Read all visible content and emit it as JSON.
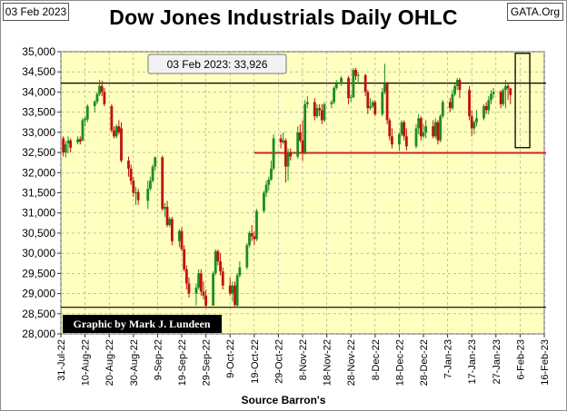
{
  "header": {
    "date_tag": "03 Feb 2023",
    "source_tag": "GATA.Org"
  },
  "chart_data": {
    "type": "ohlc",
    "title": "Dow Jones Industrials Daily OHLC",
    "xlabel": "Source Barron's",
    "ylabel": "",
    "ylim": [
      28000,
      35000
    ],
    "y_ticks": [
      28000,
      28500,
      29000,
      29500,
      30000,
      30500,
      31000,
      31500,
      32000,
      32500,
      33000,
      33500,
      34000,
      34500,
      35000
    ],
    "y_tick_labels": [
      "28,000",
      "28,500",
      "29,000",
      "29,500",
      "30,000",
      "30,500",
      "31,000",
      "31,500",
      "32,000",
      "32,500",
      "33,000",
      "33,500",
      "34,000",
      "34,500",
      "35,000"
    ],
    "x_tick_labels": [
      "31-Jul-22",
      "10-Aug-22",
      "20-Aug-22",
      "30-Aug-22",
      "9-Sep-22",
      "19-Sep-22",
      "29-Sep-22",
      "9-Oct-22",
      "19-Oct-22",
      "29-Oct-22",
      "8-Nov-22",
      "18-Nov-22",
      "28-Nov-22",
      "8-Dec-22",
      "18-Dec-22",
      "28-Dec-22",
      "7-Jan-23",
      "17-Jan-23",
      "27-Jan-23",
      "6-Feb-23",
      "16-Feb-23"
    ],
    "x_range_days": [
      0,
      200
    ],
    "last_close_label": "03 Feb 2023: 33,926",
    "credit": "Graphic by Mark J. Lundeen",
    "colors": {
      "up": "#1e8c1e",
      "down": "#c01010",
      "plot_bg": "#ffffc0",
      "ref_red": "#c82828"
    },
    "reference_lines": [
      {
        "name": "upper-black",
        "y": 34220,
        "color": "#000000"
      },
      {
        "name": "lower-black",
        "y": 28660,
        "color": "#000000"
      },
      {
        "name": "red-support",
        "y": 32490,
        "from_day": 80,
        "color": "#c82828"
      }
    ],
    "highlight_box": {
      "day_start": 188,
      "day_end": 194,
      "y_low": 32620,
      "y_high": 34960
    },
    "bars": [
      {
        "d": 1,
        "o": 32850,
        "h": 32900,
        "l": 32400,
        "c": 32500
      },
      {
        "d": 2,
        "o": 32500,
        "h": 32780,
        "l": 32380,
        "c": 32700
      },
      {
        "d": 3,
        "o": 32720,
        "h": 32900,
        "l": 32480,
        "c": 32800
      },
      {
        "d": 4,
        "o": 32800,
        "h": 32850,
        "l": 32500,
        "c": 32620
      },
      {
        "d": 7,
        "o": 32750,
        "h": 32900,
        "l": 32700,
        "c": 32830
      },
      {
        "d": 8,
        "o": 32830,
        "h": 32900,
        "l": 32700,
        "c": 32770
      },
      {
        "d": 9,
        "o": 32800,
        "h": 33350,
        "l": 32780,
        "c": 33300
      },
      {
        "d": 10,
        "o": 33300,
        "h": 33400,
        "l": 33150,
        "c": 33340
      },
      {
        "d": 11,
        "o": 33320,
        "h": 33700,
        "l": 33250,
        "c": 33650
      },
      {
        "d": 14,
        "o": 33650,
        "h": 33800,
        "l": 33500,
        "c": 33760
      },
      {
        "d": 15,
        "o": 33760,
        "h": 34000,
        "l": 33700,
        "c": 33950
      },
      {
        "d": 16,
        "o": 33950,
        "h": 34300,
        "l": 33900,
        "c": 34150
      },
      {
        "d": 17,
        "o": 34150,
        "h": 34280,
        "l": 33900,
        "c": 34000
      },
      {
        "d": 18,
        "o": 34000,
        "h": 34100,
        "l": 33650,
        "c": 33700
      },
      {
        "d": 21,
        "o": 33650,
        "h": 33700,
        "l": 33000,
        "c": 33050
      },
      {
        "d": 22,
        "o": 33050,
        "h": 33150,
        "l": 32850,
        "c": 32900
      },
      {
        "d": 23,
        "o": 32900,
        "h": 33200,
        "l": 32850,
        "c": 33150
      },
      {
        "d": 24,
        "o": 33150,
        "h": 33300,
        "l": 32950,
        "c": 33000
      },
      {
        "d": 25,
        "o": 33100,
        "h": 33250,
        "l": 32250,
        "c": 32300
      },
      {
        "d": 28,
        "o": 32300,
        "h": 32400,
        "l": 31900,
        "c": 32100
      },
      {
        "d": 29,
        "o": 32100,
        "h": 32200,
        "l": 31700,
        "c": 31800
      },
      {
        "d": 30,
        "o": 31800,
        "h": 31900,
        "l": 31400,
        "c": 31500
      },
      {
        "d": 31,
        "o": 31500,
        "h": 31650,
        "l": 31200,
        "c": 31510
      },
      {
        "d": 32,
        "o": 31520,
        "h": 31600,
        "l": 31200,
        "c": 31320
      },
      {
        "d": 36,
        "o": 31300,
        "h": 31800,
        "l": 31100,
        "c": 31600
      },
      {
        "d": 37,
        "o": 31600,
        "h": 31900,
        "l": 31550,
        "c": 31800
      },
      {
        "d": 38,
        "o": 31800,
        "h": 32200,
        "l": 31750,
        "c": 32150
      },
      {
        "d": 39,
        "o": 32150,
        "h": 32400,
        "l": 32050,
        "c": 32380
      },
      {
        "d": 42,
        "o": 32380,
        "h": 32420,
        "l": 31050,
        "c": 31100
      },
      {
        "d": 43,
        "o": 31100,
        "h": 31250,
        "l": 30900,
        "c": 31150
      },
      {
        "d": 44,
        "o": 31150,
        "h": 31300,
        "l": 30650,
        "c": 30700
      },
      {
        "d": 45,
        "o": 30700,
        "h": 30900,
        "l": 30650,
        "c": 30850
      },
      {
        "d": 46,
        "o": 30850,
        "h": 30900,
        "l": 30200,
        "c": 30300
      },
      {
        "d": 49,
        "o": 30300,
        "h": 30600,
        "l": 30150,
        "c": 30550
      },
      {
        "d": 50,
        "o": 30550,
        "h": 30650,
        "l": 30050,
        "c": 30100
      },
      {
        "d": 51,
        "o": 30100,
        "h": 30200,
        "l": 29550,
        "c": 29600
      },
      {
        "d": 52,
        "o": 29600,
        "h": 29700,
        "l": 29100,
        "c": 29250
      },
      {
        "d": 53,
        "o": 29250,
        "h": 29400,
        "l": 28900,
        "c": 29000
      },
      {
        "d": 56,
        "o": 29000,
        "h": 29250,
        "l": 28700,
        "c": 29150
      },
      {
        "d": 57,
        "o": 29150,
        "h": 29600,
        "l": 29100,
        "c": 29500
      },
      {
        "d": 58,
        "o": 29500,
        "h": 29600,
        "l": 28950,
        "c": 29050
      },
      {
        "d": 59,
        "o": 29050,
        "h": 29300,
        "l": 28850,
        "c": 28950
      },
      {
        "d": 60,
        "o": 28950,
        "h": 29100,
        "l": 28650,
        "c": 28700
      },
      {
        "d": 63,
        "o": 28700,
        "h": 29550,
        "l": 28700,
        "c": 29500
      },
      {
        "d": 64,
        "o": 29500,
        "h": 30100,
        "l": 29450,
        "c": 30050
      },
      {
        "d": 65,
        "o": 30050,
        "h": 30100,
        "l": 29700,
        "c": 29800
      },
      {
        "d": 66,
        "o": 29800,
        "h": 30000,
        "l": 29450,
        "c": 29550
      },
      {
        "d": 67,
        "o": 29550,
        "h": 29650,
        "l": 29100,
        "c": 29200
      },
      {
        "d": 70,
        "o": 29200,
        "h": 29400,
        "l": 28950,
        "c": 29000
      },
      {
        "d": 71,
        "o": 29000,
        "h": 29300,
        "l": 28800,
        "c": 29200
      },
      {
        "d": 72,
        "o": 29200,
        "h": 29300,
        "l": 28650,
        "c": 28720
      },
      {
        "d": 73,
        "o": 28700,
        "h": 29500,
        "l": 28650,
        "c": 29450
      },
      {
        "d": 74,
        "o": 29450,
        "h": 29800,
        "l": 29400,
        "c": 29650
      },
      {
        "d": 77,
        "o": 29650,
        "h": 30250,
        "l": 29600,
        "c": 30200
      },
      {
        "d": 78,
        "o": 30200,
        "h": 30550,
        "l": 30150,
        "c": 30500
      },
      {
        "d": 79,
        "o": 30500,
        "h": 30700,
        "l": 30300,
        "c": 30420
      },
      {
        "d": 80,
        "o": 30420,
        "h": 30550,
        "l": 30200,
        "c": 30350
      },
      {
        "d": 81,
        "o": 30350,
        "h": 31100,
        "l": 30300,
        "c": 31050
      },
      {
        "d": 84,
        "o": 31050,
        "h": 31550,
        "l": 31000,
        "c": 31500
      },
      {
        "d": 85,
        "o": 31500,
        "h": 31800,
        "l": 31400,
        "c": 31700
      },
      {
        "d": 86,
        "o": 31700,
        "h": 31900,
        "l": 31550,
        "c": 31830
      },
      {
        "d": 87,
        "o": 31830,
        "h": 32300,
        "l": 31800,
        "c": 32100
      },
      {
        "d": 88,
        "o": 32100,
        "h": 32950,
        "l": 32050,
        "c": 32850
      },
      {
        "d": 91,
        "o": 32850,
        "h": 32950,
        "l": 32600,
        "c": 32750
      },
      {
        "d": 92,
        "o": 32750,
        "h": 33000,
        "l": 32700,
        "c": 32800
      },
      {
        "d": 93,
        "o": 32800,
        "h": 32850,
        "l": 31750,
        "c": 32150
      },
      {
        "d": 94,
        "o": 32150,
        "h": 32600,
        "l": 31800,
        "c": 32500
      },
      {
        "d": 95,
        "o": 32500,
        "h": 32600,
        "l": 32300,
        "c": 32400
      },
      {
        "d": 98,
        "o": 32400,
        "h": 33150,
        "l": 32350,
        "c": 33000
      },
      {
        "d": 99,
        "o": 33000,
        "h": 33200,
        "l": 32750,
        "c": 32800
      },
      {
        "d": 100,
        "o": 32800,
        "h": 33300,
        "l": 32300,
        "c": 32500
      },
      {
        "d": 101,
        "o": 32500,
        "h": 33800,
        "l": 32450,
        "c": 33700
      },
      {
        "d": 102,
        "o": 33700,
        "h": 33900,
        "l": 33600,
        "c": 33750
      },
      {
        "d": 105,
        "o": 33750,
        "h": 33850,
        "l": 33300,
        "c": 33400
      },
      {
        "d": 106,
        "o": 33400,
        "h": 33700,
        "l": 33350,
        "c": 33600
      },
      {
        "d": 107,
        "o": 33600,
        "h": 33700,
        "l": 33400,
        "c": 33550
      },
      {
        "d": 108,
        "o": 33550,
        "h": 33700,
        "l": 33200,
        "c": 33300
      },
      {
        "d": 109,
        "o": 33300,
        "h": 33750,
        "l": 33250,
        "c": 33700
      },
      {
        "d": 112,
        "o": 33700,
        "h": 33800,
        "l": 33600,
        "c": 33750
      },
      {
        "d": 113,
        "o": 33750,
        "h": 34150,
        "l": 33700,
        "c": 34100
      },
      {
        "d": 114,
        "o": 34100,
        "h": 34300,
        "l": 34050,
        "c": 34200
      },
      {
        "d": 116,
        "o": 34200,
        "h": 34400,
        "l": 34150,
        "c": 34350
      },
      {
        "d": 119,
        "o": 34350,
        "h": 34400,
        "l": 33700,
        "c": 33850
      },
      {
        "d": 120,
        "o": 33850,
        "h": 33950,
        "l": 33750,
        "c": 33870
      },
      {
        "d": 121,
        "o": 33870,
        "h": 34600,
        "l": 33850,
        "c": 34550
      },
      {
        "d": 122,
        "o": 34550,
        "h": 34600,
        "l": 34300,
        "c": 34400
      },
      {
        "d": 123,
        "o": 34400,
        "h": 34500,
        "l": 34200,
        "c": 34420
      },
      {
        "d": 126,
        "o": 34420,
        "h": 34450,
        "l": 33900,
        "c": 34000
      },
      {
        "d": 127,
        "o": 34000,
        "h": 34050,
        "l": 33450,
        "c": 33600
      },
      {
        "d": 128,
        "o": 33600,
        "h": 33850,
        "l": 33550,
        "c": 33650
      },
      {
        "d": 129,
        "o": 33650,
        "h": 33800,
        "l": 33600,
        "c": 33750
      },
      {
        "d": 130,
        "o": 33750,
        "h": 33800,
        "l": 33400,
        "c": 33450
      },
      {
        "d": 133,
        "o": 33450,
        "h": 34100,
        "l": 33400,
        "c": 34000
      },
      {
        "d": 134,
        "o": 34000,
        "h": 34700,
        "l": 33950,
        "c": 34200
      },
      {
        "d": 135,
        "o": 34200,
        "h": 34250,
        "l": 33200,
        "c": 33300
      },
      {
        "d": 136,
        "o": 33300,
        "h": 33350,
        "l": 32800,
        "c": 32900
      },
      {
        "d": 137,
        "o": 32900,
        "h": 33100,
        "l": 32600,
        "c": 32700
      },
      {
        "d": 140,
        "o": 32700,
        "h": 33000,
        "l": 32550,
        "c": 32950
      },
      {
        "d": 141,
        "o": 32950,
        "h": 33300,
        "l": 32900,
        "c": 33250
      },
      {
        "d": 142,
        "o": 33250,
        "h": 33300,
        "l": 32800,
        "c": 32900
      },
      {
        "d": 143,
        "o": 32900,
        "h": 33100,
        "l": 32550,
        "c": 32650
      },
      {
        "d": 147,
        "o": 32650,
        "h": 33200,
        "l": 32600,
        "c": 33100
      },
      {
        "d": 148,
        "o": 33100,
        "h": 33450,
        "l": 32950,
        "c": 33350
      },
      {
        "d": 149,
        "o": 33350,
        "h": 33400,
        "l": 32800,
        "c": 32900
      },
      {
        "d": 150,
        "o": 32900,
        "h": 33200,
        "l": 32850,
        "c": 33000
      },
      {
        "d": 151,
        "o": 33000,
        "h": 33300,
        "l": 32850,
        "c": 33150
      },
      {
        "d": 154,
        "o": 33150,
        "h": 33300,
        "l": 32850,
        "c": 32900
      },
      {
        "d": 155,
        "o": 32900,
        "h": 33350,
        "l": 32850,
        "c": 33250
      },
      {
        "d": 156,
        "o": 33250,
        "h": 33300,
        "l": 32700,
        "c": 32800
      },
      {
        "d": 157,
        "o": 32800,
        "h": 33450,
        "l": 32750,
        "c": 33400
      },
      {
        "d": 158,
        "o": 33400,
        "h": 33800,
        "l": 33350,
        "c": 33750
      },
      {
        "d": 161,
        "o": 33750,
        "h": 33850,
        "l": 33500,
        "c": 33600
      },
      {
        "d": 162,
        "o": 33600,
        "h": 34050,
        "l": 33550,
        "c": 33950
      },
      {
        "d": 163,
        "o": 33950,
        "h": 34200,
        "l": 33900,
        "c": 34150
      },
      {
        "d": 164,
        "o": 34150,
        "h": 34350,
        "l": 34050,
        "c": 34300
      },
      {
        "d": 165,
        "o": 34300,
        "h": 34350,
        "l": 33850,
        "c": 34050
      },
      {
        "d": 169,
        "o": 34050,
        "h": 34150,
        "l": 33300,
        "c": 33400
      },
      {
        "d": 170,
        "o": 33400,
        "h": 33550,
        "l": 32900,
        "c": 33100
      },
      {
        "d": 171,
        "o": 33100,
        "h": 33300,
        "l": 32950,
        "c": 33250
      },
      {
        "d": 172,
        "o": 33250,
        "h": 33550,
        "l": 33150,
        "c": 33350
      },
      {
        "d": 175,
        "o": 33350,
        "h": 33700,
        "l": 33300,
        "c": 33650
      },
      {
        "d": 176,
        "o": 33650,
        "h": 33750,
        "l": 33450,
        "c": 33550
      },
      {
        "d": 177,
        "o": 33550,
        "h": 33900,
        "l": 33450,
        "c": 33800
      },
      {
        "d": 178,
        "o": 33800,
        "h": 34050,
        "l": 33700,
        "c": 33950
      },
      {
        "d": 179,
        "o": 33950,
        "h": 34100,
        "l": 33850,
        "c": 34000
      },
      {
        "d": 182,
        "o": 34000,
        "h": 34050,
        "l": 33600,
        "c": 33700
      },
      {
        "d": 183,
        "o": 33700,
        "h": 34100,
        "l": 33650,
        "c": 34050
      },
      {
        "d": 184,
        "o": 34050,
        "h": 34300,
        "l": 33600,
        "c": 34150
      },
      {
        "d": 185,
        "o": 34150,
        "h": 34200,
        "l": 33800,
        "c": 34090
      },
      {
        "d": 186,
        "o": 34090,
        "h": 34100,
        "l": 33700,
        "c": 33926
      }
    ]
  }
}
